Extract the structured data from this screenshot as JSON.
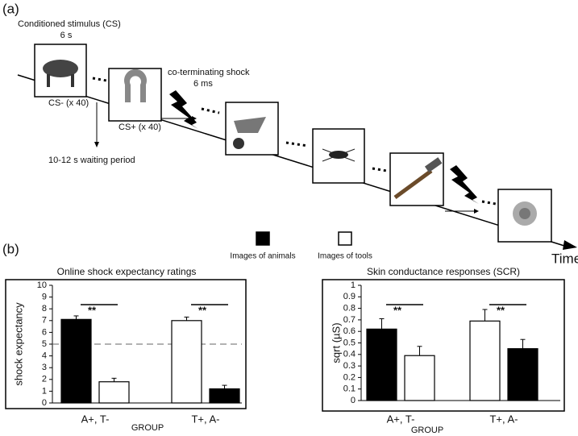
{
  "panel_a": {
    "label": "(a)",
    "cs_title": "Conditioned stimulus (CS)",
    "cs_duration": "6 s",
    "cs_minus": "CS- (x 40)",
    "cs_plus": "CS+ (x 40)",
    "shock_title": "co-terminating shock",
    "shock_duration": "6 ms",
    "waiting": "10-12 s waiting period",
    "time": "Time"
  },
  "panel_b": {
    "label": "(b)"
  },
  "chart_data": [
    {
      "type": "bar",
      "title": "Online shock expectancy ratings",
      "xlabel": "GROUP",
      "ylabel": "shock expectancy",
      "categories": [
        "A+, T-",
        "T+, A-"
      ],
      "series": [
        {
          "name": "Images of animals",
          "color": "#000000",
          "values": [
            7.1,
            1.2
          ],
          "errors": [
            0.3,
            0.3
          ]
        },
        {
          "name": "Images of tools",
          "color": "#ffffff",
          "values": [
            1.8,
            7.0
          ],
          "errors": [
            0.3,
            0.3
          ]
        }
      ],
      "reference_line": 5,
      "significance": [
        "**",
        "**"
      ],
      "ylim": [
        0,
        10
      ],
      "yticks": [
        0,
        1,
        2,
        3,
        4,
        5,
        6,
        7,
        8,
        9,
        10
      ]
    },
    {
      "type": "bar",
      "title": "Skin conductance responses (SCR)",
      "xlabel": "GROUP",
      "ylabel": "sqrt (µS)",
      "categories": [
        "A+, T-",
        "T+, A-"
      ],
      "series": [
        {
          "color": "#000000",
          "values": [
            0.62,
            0.45
          ],
          "errors": [
            0.09,
            0.08
          ]
        },
        {
          "color": "#ffffff",
          "values": [
            0.39,
            0.69
          ],
          "errors": [
            0.08,
            0.1
          ]
        }
      ],
      "significance": [
        "**",
        "**"
      ],
      "ylim": [
        0,
        1
      ],
      "yticks": [
        0,
        0.1,
        0.2,
        0.3,
        0.4,
        0.5,
        0.6,
        0.7,
        0.8,
        0.9,
        1
      ]
    }
  ]
}
